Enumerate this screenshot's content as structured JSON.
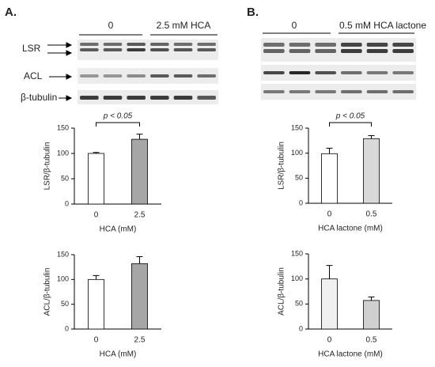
{
  "figure": {
    "panels": [
      {
        "label": "A.",
        "lane_groups": [
          "0",
          "2.5 mM HCA"
        ],
        "blots": [
          "LSR",
          "ACL",
          "β-tubulin"
        ]
      },
      {
        "label": "B.",
        "lane_groups": [
          "0",
          "0.5 mM HCA lactone"
        ]
      }
    ]
  },
  "chart_data": [
    {
      "type": "bar",
      "ylabel": "LSR/β-tubulin",
      "xlabel": "HCA (mM)",
      "categories": [
        "0",
        "2.5"
      ],
      "values": [
        100,
        128
      ],
      "errors": [
        2,
        10
      ],
      "colors": [
        "#ffffff",
        "#a6a6a6"
      ],
      "ylim": [
        0,
        150
      ],
      "yticks": [
        0,
        50,
        100,
        150
      ],
      "annotation": "p < 0.05"
    },
    {
      "type": "bar",
      "ylabel": "ACL/β-tubulin",
      "xlabel": "HCA (mM)",
      "categories": [
        "0",
        "2.5"
      ],
      "values": [
        100,
        132
      ],
      "errors": [
        8,
        14
      ],
      "colors": [
        "#ffffff",
        "#a6a6a6"
      ],
      "ylim": [
        0,
        150
      ],
      "yticks": [
        0,
        50,
        100,
        150
      ]
    },
    {
      "type": "bar",
      "ylabel": "LSR/β-tubulin",
      "xlabel": "HCA lactone (mM)",
      "categories": [
        "0",
        "0.5"
      ],
      "values": [
        99,
        129
      ],
      "errors": [
        11,
        6
      ],
      "colors": [
        "#ffffff",
        "#d9d9d9"
      ],
      "ylim": [
        0,
        150
      ],
      "yticks": [
        0,
        50,
        100,
        150
      ],
      "annotation": "p < 0.05"
    },
    {
      "type": "bar",
      "ylabel": "ACL/β-tubulin",
      "xlabel": "HCA lactone (mM)",
      "categories": [
        "0",
        "0.5"
      ],
      "values": [
        100,
        57
      ],
      "errors": [
        27,
        7
      ],
      "colors": [
        "#f0f0f0",
        "#d0d0d0"
      ],
      "ylim": [
        0,
        150
      ],
      "yticks": [
        0,
        50,
        100,
        150
      ]
    }
  ]
}
